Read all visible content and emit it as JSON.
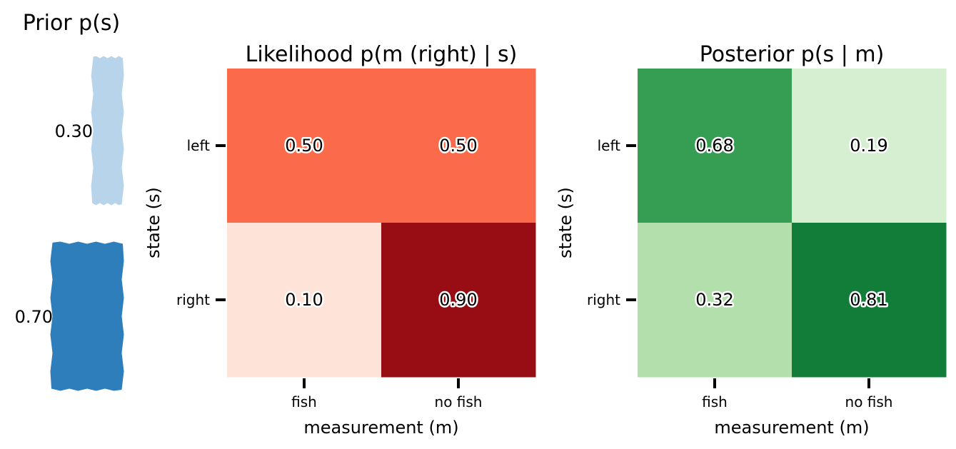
{
  "chart_data": [
    {
      "type": "bar",
      "title": "Prior p(s)",
      "categories": [
        "left",
        "right"
      ],
      "values": [
        0.3,
        0.7
      ],
      "value_labels": [
        "0.30",
        "0.70"
      ],
      "colors": [
        "#b8d4ea",
        "#2e7ebc"
      ]
    },
    {
      "type": "heatmap",
      "title": "Likelihood p(m (right) | s)",
      "xlabel": "measurement (m)",
      "ylabel": "state (s)",
      "x_categories": [
        "fish",
        "no fish"
      ],
      "y_categories": [
        "left",
        "right"
      ],
      "values": [
        [
          0.5,
          0.5
        ],
        [
          0.1,
          0.9
        ]
      ],
      "value_labels": [
        [
          "0.50",
          "0.50"
        ],
        [
          "0.10",
          "0.90"
        ]
      ],
      "colors": [
        [
          "#fb6a4a",
          "#fb6a4a"
        ],
        [
          "#fee4d8",
          "#980c13"
        ]
      ]
    },
    {
      "type": "heatmap",
      "title": "Posterior p(s | m)",
      "xlabel": "measurement (m)",
      "ylabel": "state (s)",
      "x_categories": [
        "fish",
        "no fish"
      ],
      "y_categories": [
        "left",
        "right"
      ],
      "values": [
        [
          0.68,
          0.19
        ],
        [
          0.32,
          0.81
        ]
      ],
      "value_labels": [
        [
          "0.68",
          "0.19"
        ],
        [
          "0.32",
          "0.81"
        ]
      ],
      "colors": [
        [
          "#369e52",
          "#d6efd0"
        ],
        [
          "#b2dfab",
          "#127d39"
        ]
      ]
    }
  ]
}
